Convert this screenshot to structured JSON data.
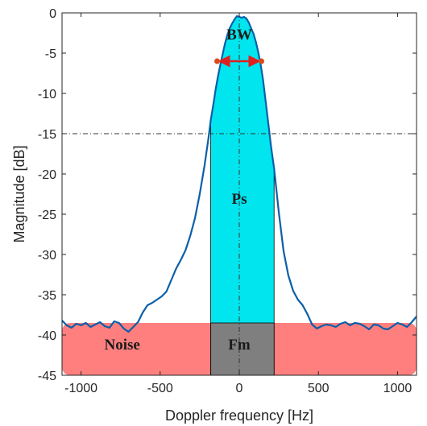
{
  "chart_data": {
    "type": "line",
    "title": "",
    "xlabel": "Doppler frequency [Hz]",
    "ylabel": "Magnitude [dB]",
    "xlim": [
      -1120,
      1120
    ],
    "ylim": [
      -45,
      0
    ],
    "xticks": [
      -1000,
      -500,
      0,
      500,
      1000
    ],
    "yticks": [
      0,
      -5,
      -10,
      -15,
      -20,
      -25,
      -30,
      -35,
      -40,
      -45
    ],
    "grid": false,
    "threshold_db": -15,
    "noise_floor_db": -38.5,
    "signal_band_hz": [
      -180,
      220
    ],
    "bw_marker": {
      "x": [
        -140,
        140
      ],
      "y": -6
    },
    "series": [
      {
        "color": "#0b5fa8",
        "x": [
          -1120,
          -1090,
          -1060,
          -1030,
          -1000,
          -970,
          -940,
          -910,
          -880,
          -850,
          -820,
          -790,
          -760,
          -730,
          -700,
          -670,
          -640,
          -610,
          -580,
          -550,
          -520,
          -490,
          -460,
          -430,
          -400,
          -370,
          -340,
          -310,
          -280,
          -250,
          -220,
          -195,
          -180,
          -165,
          -150,
          -135,
          -120,
          -105,
          -90,
          -75,
          -60,
          -45,
          -30,
          -15,
          0,
          15,
          30,
          45,
          60,
          75,
          90,
          105,
          120,
          135,
          150,
          165,
          180,
          200,
          220,
          250,
          280,
          310,
          340,
          370,
          400,
          430,
          460,
          490,
          520,
          550,
          580,
          610,
          640,
          670,
          700,
          730,
          760,
          790,
          820,
          850,
          880,
          910,
          940,
          970,
          1000,
          1030,
          1060,
          1090,
          1120
        ],
        "y": [
          -38.2,
          -38.8,
          -39.1,
          -38.6,
          -38.8,
          -38.5,
          -39.0,
          -38.7,
          -38.4,
          -38.9,
          -39.1,
          -38.3,
          -38.5,
          -39.2,
          -39.6,
          -39.0,
          -38.4,
          -37.2,
          -36.3,
          -36.0,
          -35.6,
          -35.2,
          -34.6,
          -33.2,
          -31.8,
          -30.7,
          -29.5,
          -27.7,
          -25.5,
          -22.5,
          -19.0,
          -15.6,
          -13.3,
          -11.5,
          -9.6,
          -7.9,
          -6.5,
          -5.1,
          -3.8,
          -2.7,
          -1.9,
          -1.3,
          -0.8,
          -0.4,
          -0.5,
          -0.6,
          -0.5,
          -0.7,
          -1.2,
          -1.9,
          -2.6,
          -3.6,
          -4.9,
          -6.4,
          -8.3,
          -10.7,
          -13.2,
          -16.5,
          -19.3,
          -24.8,
          -29.6,
          -32.6,
          -34.5,
          -35.6,
          -36.3,
          -37.4,
          -38.7,
          -39.2,
          -38.9,
          -38.7,
          -38.8,
          -39.0,
          -38.6,
          -38.4,
          -38.8,
          -38.5,
          -38.6,
          -38.9,
          -39.3,
          -38.7,
          -38.8,
          -39.2,
          -39.3,
          -38.9,
          -38.5,
          -38.7,
          -39.0,
          -38.4,
          -37.7
        ]
      }
    ],
    "annotations": [
      {
        "text": "BW",
        "x": 0,
        "y": -3.3
      },
      {
        "text": "Ps",
        "x": 0,
        "y": -23.7
      },
      {
        "text": "Noise",
        "x": -740,
        "y": -41.8
      },
      {
        "text": "Fm",
        "x": 0,
        "y": -41.8
      }
    ],
    "regions": {
      "noise_color": "#ff7f7f",
      "signal_color": "#00e5ee",
      "overlap_color": "#7f7f7f"
    },
    "bw_arrow_color": "#e02020",
    "bw_dot_color": "#d94a1a"
  }
}
